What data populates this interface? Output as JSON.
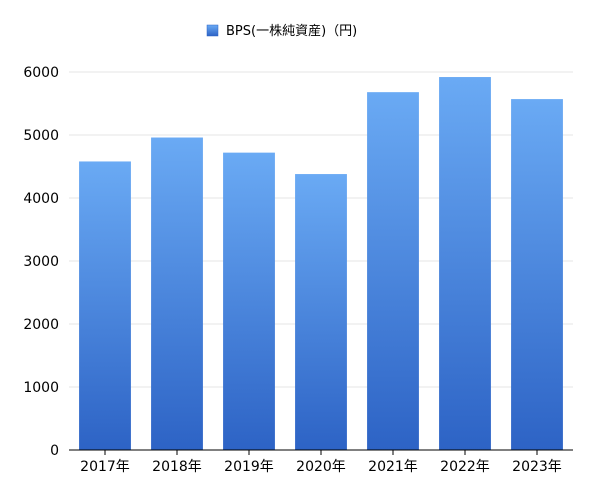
{
  "chart_data": {
    "type": "bar",
    "categories": [
      "2017年",
      "2018年",
      "2019年",
      "2020年",
      "2021年",
      "2022年",
      "2023年"
    ],
    "series": [
      {
        "name": "BPS(一株純資産)（円)",
        "values": [
          4580,
          4960,
          4720,
          4380,
          5680,
          5920,
          5570
        ]
      }
    ],
    "yticks": [
      0,
      1000,
      2000,
      3000,
      4000,
      5000,
      6000
    ],
    "ylim": [
      0,
      6000
    ],
    "grid": true,
    "legend_position": "top-center",
    "colors": {
      "bar_top": "#6aaaf4",
      "bar_bottom": "#2d63c5",
      "grid": "#e4e4e4",
      "axis": "#000000"
    }
  }
}
